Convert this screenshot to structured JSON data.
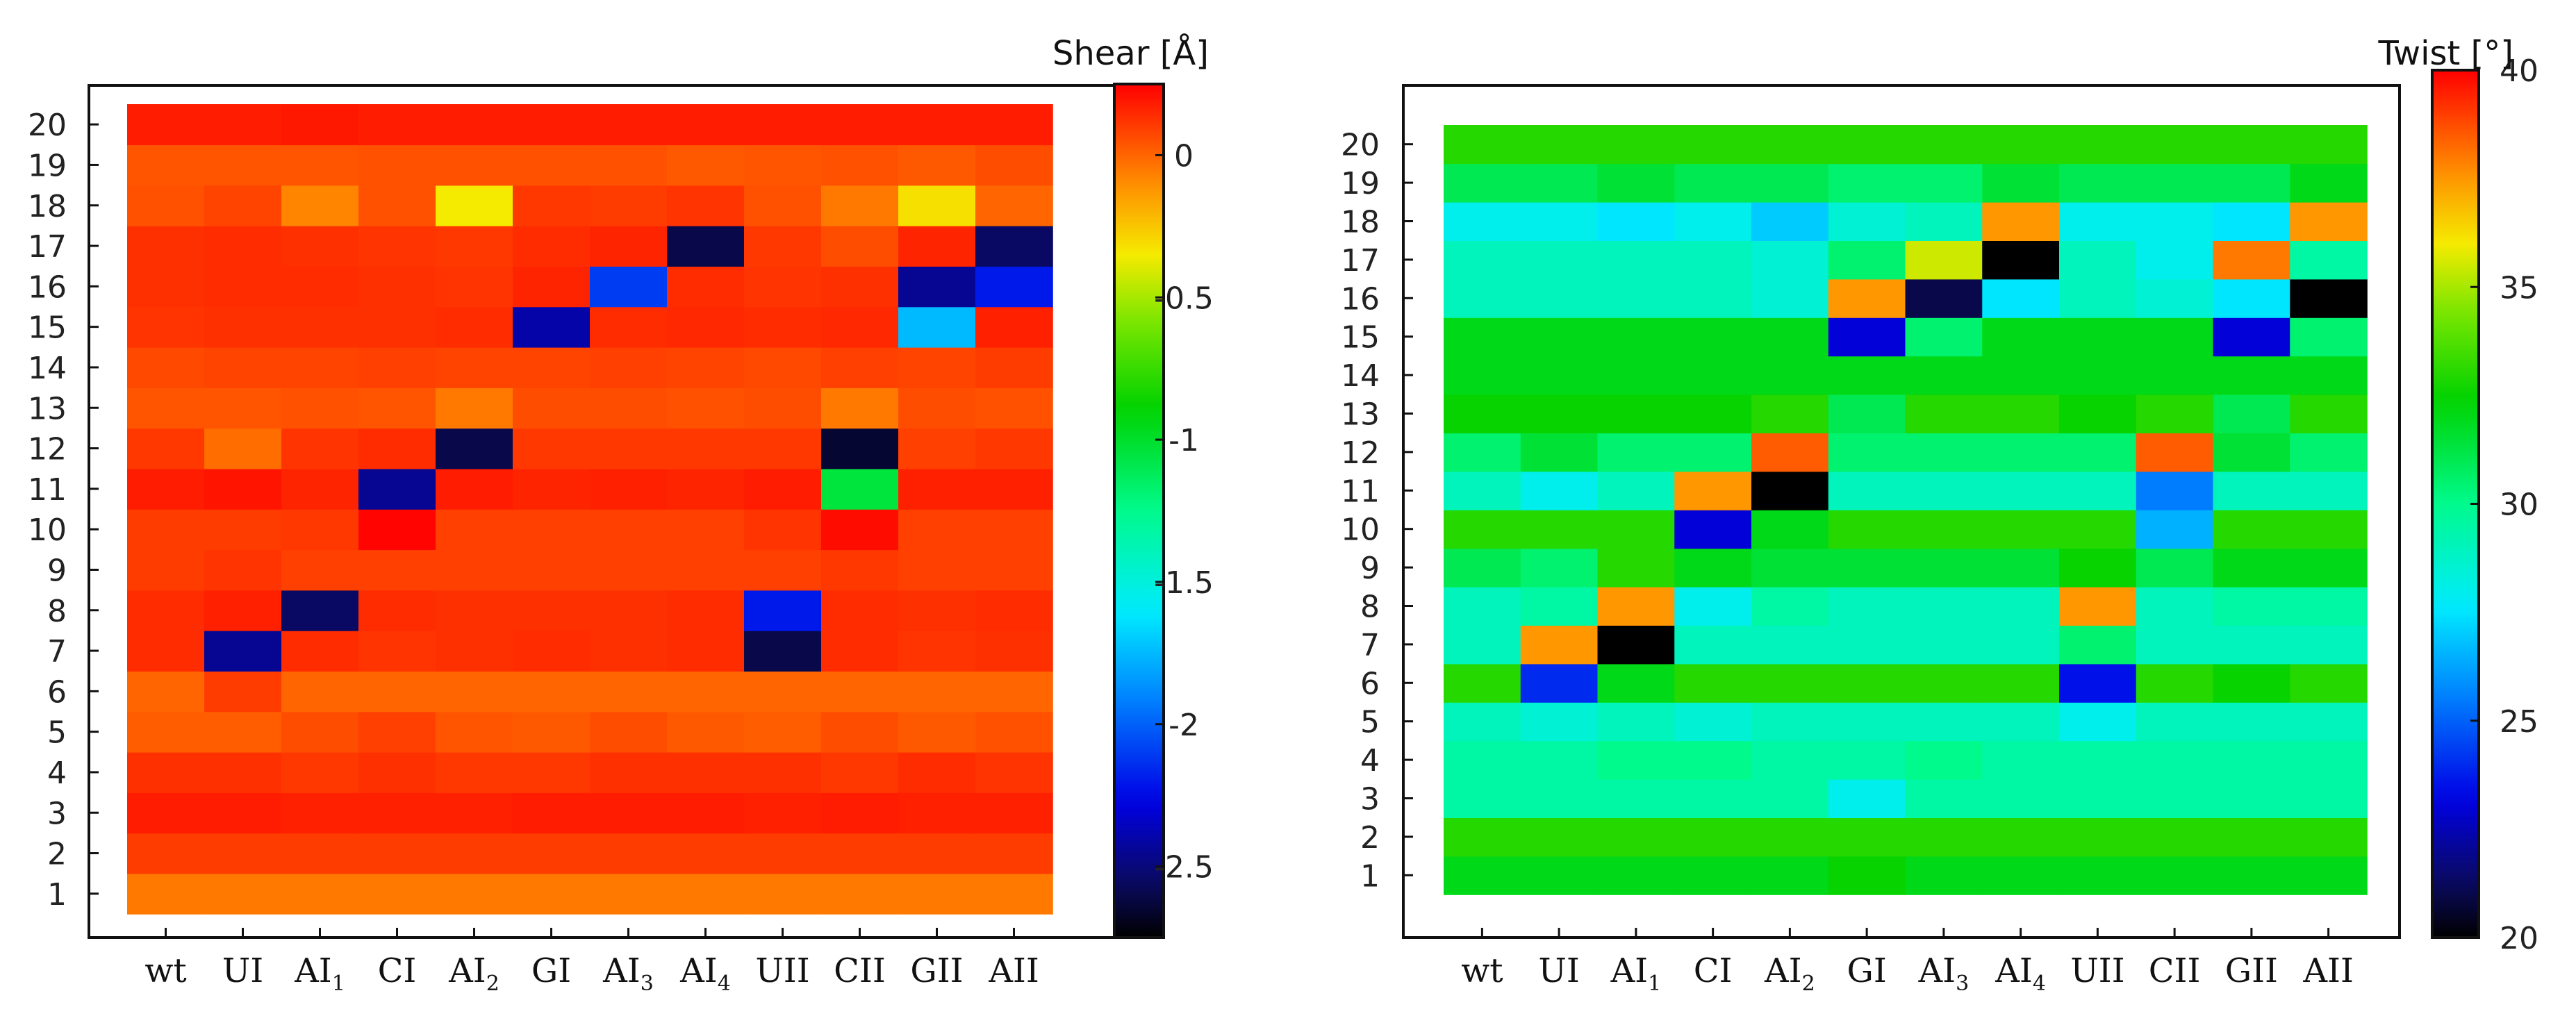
{
  "chart_data": [
    {
      "type": "heatmap",
      "title": "Shear [Å]",
      "colorbar_label": "Shear [Å]",
      "x_categories": [
        {
          "base": "wt",
          "sub": ""
        },
        {
          "base": "UI",
          "sub": ""
        },
        {
          "base": "AI",
          "sub": "1"
        },
        {
          "base": "CI",
          "sub": ""
        },
        {
          "base": "AI",
          "sub": "2"
        },
        {
          "base": "GI",
          "sub": ""
        },
        {
          "base": "AI",
          "sub": "3"
        },
        {
          "base": "AI",
          "sub": "4"
        },
        {
          "base": "UII",
          "sub": ""
        },
        {
          "base": "CII",
          "sub": ""
        },
        {
          "base": "GII",
          "sub": ""
        },
        {
          "base": "AII",
          "sub": ""
        }
      ],
      "y_categories": [
        "1",
        "2",
        "3",
        "4",
        "5",
        "6",
        "7",
        "8",
        "9",
        "10",
        "11",
        "12",
        "13",
        "14",
        "15",
        "16",
        "17",
        "18",
        "19",
        "20"
      ],
      "colorbar_range": [
        -2.75,
        0.25
      ],
      "colorbar_ticks": [
        {
          "value": 0,
          "label": "0"
        },
        {
          "value": -0.5,
          "label": "-0.5"
        },
        {
          "value": -1,
          "label": "-1"
        },
        {
          "value": -1.5,
          "label": "-1.5"
        },
        {
          "value": -2,
          "label": "-2"
        },
        {
          "value": -2.5,
          "label": "-2.5"
        }
      ],
      "values": [
        [
          -0.05,
          -0.05,
          -0.05,
          -0.05,
          -0.05,
          -0.05,
          -0.05,
          -0.05,
          -0.05,
          -0.05,
          -0.05,
          -0.05
        ],
        [
          0.1,
          0.1,
          0.1,
          0.1,
          0.1,
          0.1,
          0.1,
          0.1,
          0.1,
          0.1,
          0.1,
          0.1
        ],
        [
          0.18,
          0.18,
          0.17,
          0.17,
          0.17,
          0.18,
          0.18,
          0.18,
          0.17,
          0.18,
          0.17,
          0.17
        ],
        [
          0.13,
          0.13,
          0.11,
          0.13,
          0.11,
          0.11,
          0.13,
          0.13,
          0.13,
          0.11,
          0.14,
          0.12
        ],
        [
          0.02,
          0.02,
          0.06,
          0.09,
          0.04,
          0.03,
          0.06,
          0.03,
          0.02,
          0.06,
          0.03,
          0.05
        ],
        [
          0.0,
          0.1,
          0.0,
          0.0,
          0.0,
          0.0,
          0.0,
          0.0,
          0.0,
          0.0,
          0.0,
          0.0
        ],
        [
          0.14,
          -2.45,
          0.14,
          0.12,
          0.13,
          0.14,
          0.13,
          0.14,
          -2.6,
          0.14,
          0.12,
          0.13
        ],
        [
          0.14,
          0.17,
          -2.55,
          0.14,
          0.13,
          0.13,
          0.13,
          0.14,
          -2.2,
          0.14,
          0.13,
          0.14
        ],
        [
          0.1,
          0.12,
          0.09,
          0.09,
          0.09,
          0.09,
          0.09,
          0.09,
          0.09,
          0.11,
          0.09,
          0.09
        ],
        [
          0.1,
          0.1,
          0.11,
          0.24,
          0.09,
          0.09,
          0.09,
          0.09,
          0.12,
          0.22,
          0.09,
          0.09
        ],
        [
          0.18,
          0.2,
          0.16,
          -2.45,
          0.18,
          0.16,
          0.17,
          0.16,
          0.18,
          -1.05,
          0.17,
          0.17
        ],
        [
          0.11,
          -0.02,
          0.12,
          0.14,
          -2.6,
          0.11,
          0.11,
          0.11,
          0.11,
          -2.65,
          0.09,
          0.11
        ],
        [
          0.04,
          0.04,
          0.05,
          0.04,
          -0.05,
          0.06,
          0.06,
          0.05,
          0.06,
          -0.05,
          0.06,
          0.05
        ],
        [
          0.07,
          0.08,
          0.08,
          0.09,
          0.08,
          0.08,
          0.09,
          0.08,
          0.07,
          0.09,
          0.08,
          0.1
        ],
        [
          0.12,
          0.13,
          0.13,
          0.13,
          0.14,
          -2.4,
          0.14,
          0.15,
          0.14,
          0.15,
          -1.75,
          0.17
        ],
        [
          0.13,
          0.14,
          0.14,
          0.13,
          0.12,
          0.16,
          -2.1,
          0.14,
          0.12,
          0.13,
          -2.45,
          -2.2
        ],
        [
          0.13,
          0.14,
          0.13,
          0.12,
          0.11,
          0.14,
          0.16,
          -2.6,
          0.11,
          0.06,
          0.16,
          -2.55
        ],
        [
          0.05,
          0.08,
          -0.08,
          0.05,
          -0.35,
          0.11,
          0.1,
          0.12,
          0.05,
          -0.05,
          -0.32,
          0.0
        ],
        [
          0.04,
          0.04,
          0.04,
          0.05,
          0.05,
          0.05,
          0.05,
          0.03,
          0.04,
          0.05,
          0.03,
          0.06
        ],
        [
          0.18,
          0.18,
          0.19,
          0.18,
          0.18,
          0.18,
          0.18,
          0.18,
          0.18,
          0.18,
          0.18,
          0.18
        ]
      ]
    },
    {
      "type": "heatmap",
      "title": "Twist [°]",
      "colorbar_label": "Twist [°]",
      "x_categories": [
        {
          "base": "wt",
          "sub": ""
        },
        {
          "base": "UI",
          "sub": ""
        },
        {
          "base": "AI",
          "sub": "1"
        },
        {
          "base": "CI",
          "sub": ""
        },
        {
          "base": "AI",
          "sub": "2"
        },
        {
          "base": "GI",
          "sub": ""
        },
        {
          "base": "AI",
          "sub": "3"
        },
        {
          "base": "AI",
          "sub": "4"
        },
        {
          "base": "UII",
          "sub": ""
        },
        {
          "base": "CII",
          "sub": ""
        },
        {
          "base": "GII",
          "sub": ""
        },
        {
          "base": "AII",
          "sub": ""
        }
      ],
      "y_categories": [
        "1",
        "2",
        "3",
        "4",
        "5",
        "6",
        "7",
        "8",
        "9",
        "10",
        "11",
        "12",
        "13",
        "14",
        "15",
        "16",
        "17",
        "18",
        "19",
        "20"
      ],
      "colorbar_range": [
        20,
        40
      ],
      "colorbar_ticks": [
        {
          "value": 40,
          "label": "40"
        },
        {
          "value": 35,
          "label": "35"
        },
        {
          "value": 30,
          "label": "30"
        },
        {
          "value": 25,
          "label": "25"
        },
        {
          "value": 20,
          "label": "20"
        }
      ],
      "values": [
        [
          32.0,
          32.0,
          32.0,
          32.0,
          32.0,
          32.5,
          32.0,
          32.0,
          32.0,
          32.0,
          32.0,
          32.0
        ],
        [
          33.0,
          33.0,
          33.0,
          33.0,
          33.0,
          33.0,
          33.0,
          33.0,
          33.0,
          33.0,
          33.0,
          33.0
        ],
        [
          29.5,
          29.5,
          29.5,
          29.5,
          29.5,
          28.0,
          29.5,
          29.5,
          29.5,
          29.5,
          29.5,
          29.5
        ],
        [
          29.5,
          29.5,
          30.0,
          30.0,
          29.5,
          29.5,
          30.0,
          29.5,
          29.5,
          29.5,
          29.5,
          29.5
        ],
        [
          29.0,
          28.5,
          29.0,
          28.5,
          29.0,
          29.0,
          29.0,
          29.0,
          28.0,
          29.0,
          29.0,
          29.0
        ],
        [
          33.0,
          24.0,
          32.0,
          33.0,
          33.0,
          33.0,
          33.0,
          33.0,
          23.5,
          33.0,
          32.5,
          33.0
        ],
        [
          29.0,
          37.5,
          20.0,
          29.0,
          29.0,
          29.0,
          29.0,
          29.0,
          30.5,
          29.0,
          29.0,
          29.0
        ],
        [
          29.0,
          29.5,
          37.5,
          28.0,
          29.5,
          29.0,
          29.0,
          29.0,
          37.5,
          29.0,
          29.5,
          29.5
        ],
        [
          31.0,
          30.5,
          33.0,
          32.0,
          31.5,
          31.5,
          31.5,
          31.5,
          32.5,
          31.0,
          32.0,
          32.0
        ],
        [
          33.0,
          33.0,
          33.0,
          23.0,
          32.0,
          33.0,
          33.0,
          33.0,
          33.0,
          26.5,
          33.0,
          33.0
        ],
        [
          29.0,
          28.0,
          29.0,
          37.5,
          20.0,
          29.0,
          29.0,
          29.0,
          29.0,
          25.5,
          29.0,
          29.0
        ],
        [
          30.5,
          31.5,
          30.5,
          30.5,
          38.5,
          30.5,
          30.5,
          30.5,
          30.5,
          38.5,
          31.5,
          30.5
        ],
        [
          32.5,
          32.5,
          32.5,
          32.5,
          33.0,
          31.0,
          33.0,
          33.0,
          32.5,
          33.0,
          31.0,
          33.0
        ],
        [
          32.0,
          32.0,
          32.0,
          32.0,
          32.0,
          32.0,
          32.0,
          32.0,
          32.0,
          32.0,
          32.0,
          32.0
        ],
        [
          32.0,
          32.0,
          32.0,
          32.0,
          32.0,
          23.0,
          30.5,
          32.0,
          32.0,
          32.0,
          23.0,
          30.5
        ],
        [
          29.0,
          29.0,
          29.0,
          29.0,
          28.5,
          37.5,
          21.0,
          27.5,
          29.0,
          28.5,
          27.5,
          20.0
        ],
        [
          29.0,
          29.0,
          29.0,
          29.0,
          28.5,
          30.5,
          35.5,
          20.0,
          29.0,
          28.0,
          38.0,
          29.5
        ],
        [
          28.0,
          28.0,
          27.5,
          28.0,
          27.0,
          28.5,
          29.0,
          37.5,
          28.0,
          28.0,
          27.5,
          37.5
        ],
        [
          31.0,
          31.0,
          31.5,
          31.0,
          31.0,
          30.5,
          30.5,
          31.5,
          31.0,
          31.0,
          31.0,
          32.0
        ],
        [
          33.0,
          33.0,
          33.0,
          33.0,
          33.0,
          33.0,
          33.0,
          33.0,
          33.0,
          33.0,
          33.0,
          33.0
        ]
      ]
    }
  ]
}
